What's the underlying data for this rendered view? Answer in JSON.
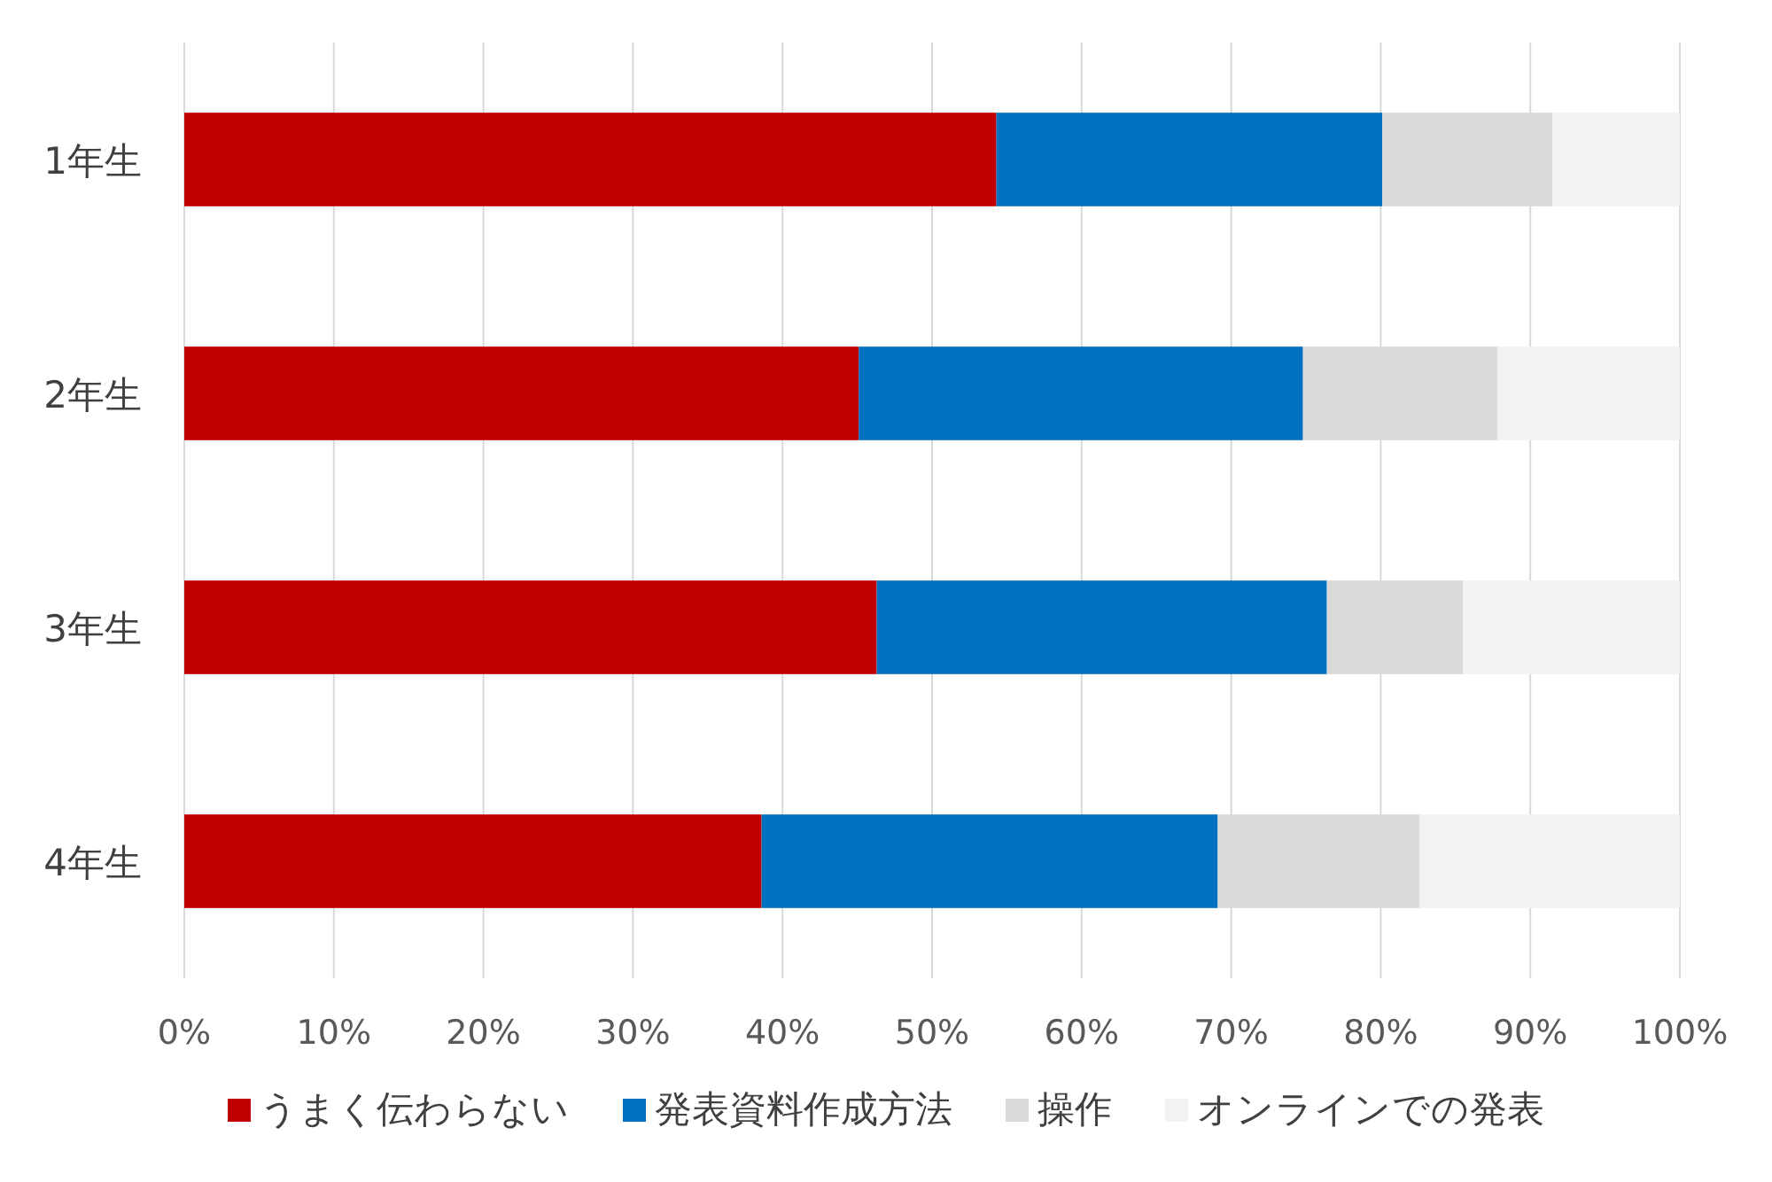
{
  "chart_data": {
    "type": "bar",
    "orientation": "horizontal",
    "stacked": true,
    "categories": [
      "1年生",
      "2年生",
      "3年生",
      "4年生"
    ],
    "series": [
      {
        "name": "うまく伝わらない",
        "color": "#c00000",
        "values": [
          54.3,
          45.1,
          46.3,
          38.6
        ]
      },
      {
        "name": "発表資料作成方法",
        "color": "#0070c0",
        "values": [
          25.8,
          29.7,
          30.1,
          30.5
        ]
      },
      {
        "name": "操作",
        "color": "#d9d9d9",
        "values": [
          11.4,
          13.0,
          9.1,
          13.5
        ]
      },
      {
        "name": "オンラインでの発表",
        "color": "#f2f2f2",
        "values": [
          8.5,
          12.2,
          14.5,
          17.4
        ]
      }
    ],
    "xlim": [
      0,
      100
    ],
    "xticks": [
      {
        "value": 0,
        "label": "0%"
      },
      {
        "value": 10,
        "label": "10%"
      },
      {
        "value": 20,
        "label": "20%"
      },
      {
        "value": 30,
        "label": "30%"
      },
      {
        "value": 40,
        "label": "40%"
      },
      {
        "value": 50,
        "label": "50%"
      },
      {
        "value": 60,
        "label": "60%"
      },
      {
        "value": 70,
        "label": "70%"
      },
      {
        "value": 80,
        "label": "80%"
      },
      {
        "value": 90,
        "label": "90%"
      },
      {
        "value": 100,
        "label": "100%"
      }
    ],
    "grid": "x",
    "legend": "bottom"
  }
}
